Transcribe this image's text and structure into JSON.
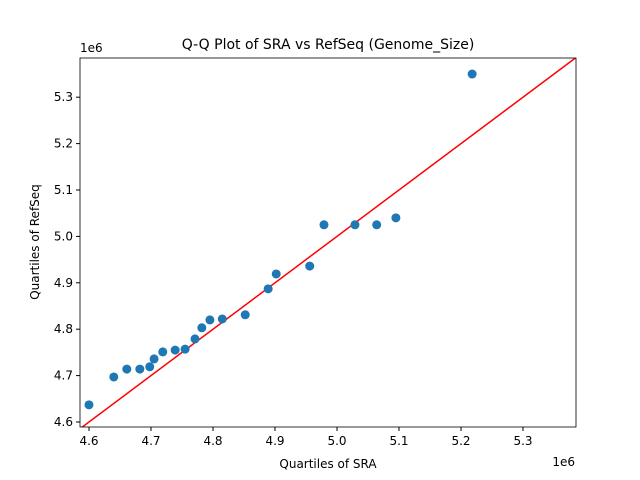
{
  "chart_data": {
    "type": "scatter",
    "title": "Q-Q Plot of SRA vs RefSeq (Genome_Size)",
    "x_label": "Quartiles of SRA",
    "y_label": "Quartiles of RefSeq",
    "x_offset_label": "1e6",
    "y_offset_label": "1e6",
    "series": [
      {
        "color": "#1f77b4",
        "x": [
          4600000,
          4640000,
          4661000,
          4682000,
          4698000,
          4705000,
          4719000,
          4739000,
          4755000,
          4771000,
          4782000,
          4795000,
          4815000,
          4852000,
          4889000,
          4902000,
          4956000,
          4979000,
          5029000,
          5064000,
          5095000,
          5218000
        ],
        "values": [
          4637000,
          4697000,
          4714000,
          4714000,
          4719000,
          4736000,
          4751000,
          4755000,
          4757000,
          4779000,
          4803000,
          4820000,
          4822000,
          4831000,
          4887000,
          4919000,
          4936000,
          5025000,
          5025000,
          5025000,
          5040000,
          5350000
        ]
      }
    ],
    "reference_line_color": "#ff0000",
    "xlim": [
      4585500,
      5385500
    ],
    "ylim": [
      4589200,
      5384500
    ],
    "xticks": [
      {
        "value": 4600000,
        "label": "4.6"
      },
      {
        "value": 4700000,
        "label": "4.7"
      },
      {
        "value": 4800000,
        "label": "4.8"
      },
      {
        "value": 4900000,
        "label": "4.9"
      },
      {
        "value": 5000000,
        "label": "5.0"
      },
      {
        "value": 5100000,
        "label": "5.1"
      },
      {
        "value": 5200000,
        "label": "5.2"
      },
      {
        "value": 5300000,
        "label": "5.3"
      }
    ],
    "yticks": [
      {
        "value": 4600000,
        "label": "4.6"
      },
      {
        "value": 4700000,
        "label": "4.7"
      },
      {
        "value": 4800000,
        "label": "4.8"
      },
      {
        "value": 4900000,
        "label": "4.9"
      },
      {
        "value": 5000000,
        "label": "5.0"
      },
      {
        "value": 5100000,
        "label": "5.1"
      },
      {
        "value": 5200000,
        "label": "5.2"
      },
      {
        "value": 5300000,
        "label": "5.3"
      }
    ]
  }
}
